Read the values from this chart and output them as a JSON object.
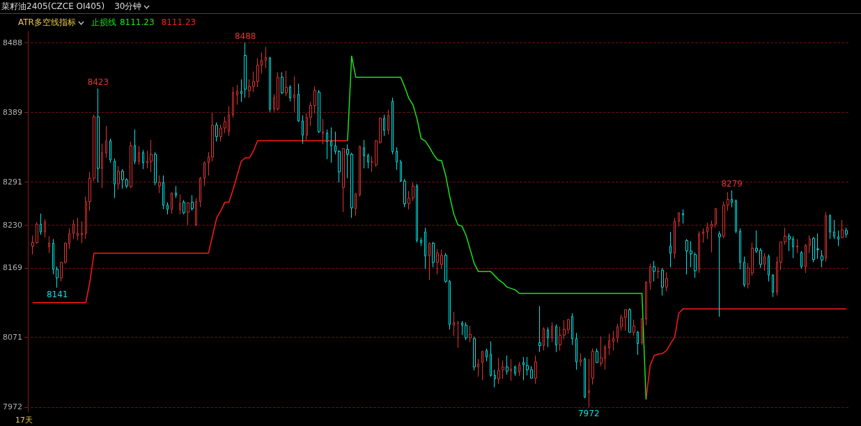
{
  "chart_data": {
    "type": "candlestick",
    "title": "菜籽油2405(CZCE OI405)",
    "subtitle": "30分钟",
    "categories": [
      null,
      null,
      null,
      null,
      null,
      null,
      null,
      null,
      null,
      null,
      null,
      null,
      null,
      null,
      null,
      null,
      null,
      null,
      null,
      null,
      null,
      null,
      null,
      null,
      null,
      null,
      null,
      null,
      null,
      null,
      null,
      null,
      null,
      null,
      null,
      null,
      null,
      null,
      null,
      null,
      null,
      null,
      null,
      null,
      null,
      null,
      null,
      null,
      null,
      null,
      null,
      null,
      null,
      null,
      null,
      null,
      null,
      null,
      null,
      null,
      null,
      null,
      null,
      null,
      null,
      null,
      null,
      null,
      null,
      null,
      null,
      null,
      null,
      null,
      null,
      null,
      null,
      null,
      null,
      null,
      null,
      null,
      null,
      null,
      null,
      null,
      null,
      null,
      null,
      null,
      null,
      null,
      null,
      null,
      null,
      null,
      null,
      null,
      null,
      null,
      null,
      null,
      null,
      null,
      null,
      null,
      null,
      null,
      null,
      null,
      null,
      null,
      null,
      null,
      null,
      null,
      null,
      null,
      null,
      null,
      null,
      null,
      null,
      null,
      null,
      null,
      null,
      null,
      null,
      null,
      null,
      null,
      null,
      null,
      null,
      null,
      null,
      null,
      null,
      null,
      null,
      null,
      null,
      null,
      null,
      null,
      null,
      null,
      null,
      null,
      null,
      null,
      null,
      null,
      null,
      null,
      null,
      null,
      null,
      null,
      null,
      null,
      null,
      null,
      null,
      null,
      null,
      null,
      null,
      null,
      null,
      null,
      null,
      null,
      null,
      null,
      null,
      null,
      null,
      null,
      null,
      null,
      null,
      null,
      null,
      null,
      null,
      null,
      null,
      null,
      null,
      null,
      null,
      null,
      null,
      null,
      null,
      null,
      null,
      null
    ],
    "ohlc": [
      [
        8200,
        8215,
        8188,
        8205
      ],
      [
        8205,
        8234,
        8203,
        8231
      ],
      [
        8231,
        8246,
        8216,
        8220
      ],
      [
        8220,
        8238,
        8212,
        8234
      ],
      [
        8199,
        8214,
        8190,
        8204
      ],
      [
        8204,
        8210,
        8160,
        8167
      ],
      [
        8167,
        8171,
        8141,
        8155
      ],
      [
        8155,
        8177,
        8150,
        8177
      ],
      [
        8177,
        8205,
        8175,
        8204
      ],
      [
        8204,
        8225,
        8196,
        8218
      ],
      [
        8218,
        8237,
        8210,
        8231
      ],
      [
        8215,
        8240,
        8208,
        8218
      ],
      [
        8216,
        8235,
        8204,
        8218
      ],
      [
        8218,
        8270,
        8210,
        8263
      ],
      [
        8263,
        8305,
        8250,
        8296
      ],
      [
        8296,
        8386,
        8292,
        8383
      ],
      [
        8383,
        8423,
        8290,
        8310
      ],
      [
        8310,
        8345,
        8282,
        8332
      ],
      [
        8332,
        8370,
        8325,
        8349
      ],
      [
        8349,
        8352,
        8318,
        8322
      ],
      [
        8320,
        8324,
        8268,
        8288
      ],
      [
        8288,
        8313,
        8280,
        8306
      ],
      [
        8306,
        8309,
        8281,
        8294
      ],
      [
        8294,
        8296,
        8282,
        8285
      ],
      [
        8284,
        8348,
        8282,
        8342
      ],
      [
        8342,
        8365,
        8316,
        8320
      ],
      [
        8320,
        8342,
        8315,
        8332
      ],
      [
        8332,
        8336,
        8309,
        8318
      ],
      [
        8318,
        8335,
        8310,
        8320
      ],
      [
        8320,
        8350,
        8305,
        8330
      ],
      [
        8330,
        8333,
        8286,
        8290
      ],
      [
        8285,
        8300,
        8275,
        8290
      ],
      [
        8290,
        8300,
        8252,
        8258
      ],
      [
        8258,
        8262,
        8245,
        8252
      ],
      [
        8252,
        8276,
        8246,
        8275
      ],
      [
        8275,
        8285,
        8268,
        8272
      ],
      [
        8252,
        8273,
        8245,
        8260
      ],
      [
        8262,
        8265,
        8245,
        8247
      ],
      [
        8248,
        8262,
        8230,
        8261
      ],
      [
        8262,
        8272,
        8250,
        8253
      ],
      [
        8230,
        8268,
        8228,
        8263
      ],
      [
        8263,
        8298,
        8255,
        8296
      ],
      [
        8296,
        8320,
        8285,
        8318
      ],
      [
        8318,
        8333,
        8300,
        8326
      ],
      [
        8326,
        8388,
        8320,
        8371
      ],
      [
        8371,
        8375,
        8348,
        8355
      ],
      [
        8355,
        8372,
        8348,
        8367
      ],
      [
        8367,
        8383,
        8360,
        8376
      ],
      [
        8362,
        8398,
        8356,
        8386
      ],
      [
        8386,
        8425,
        8382,
        8417
      ],
      [
        8414,
        8428,
        8400,
        8419
      ],
      [
        8419,
        8436,
        8404,
        8416
      ],
      [
        8470,
        8488,
        8410,
        8422
      ],
      [
        8420,
        8436,
        8410,
        8426
      ],
      [
        8426,
        8447,
        8418,
        8433
      ],
      [
        8433,
        8466,
        8425,
        8456
      ],
      [
        8456,
        8474,
        8444,
        8463
      ],
      [
        8463,
        8482,
        8452,
        8467
      ],
      [
        8466,
        8468,
        8390,
        8394
      ],
      [
        8394,
        8415,
        8390,
        8410
      ],
      [
        8394,
        8446,
        8392,
        8439
      ],
      [
        8439,
        8446,
        8415,
        8417
      ],
      [
        8417,
        8448,
        8412,
        8425
      ],
      [
        8425,
        8428,
        8405,
        8410
      ],
      [
        8410,
        8440,
        8390,
        8414
      ],
      [
        8415,
        8430,
        8376,
        8377
      ],
      [
        8377,
        8385,
        8345,
        8357
      ],
      [
        8357,
        8388,
        8350,
        8382
      ],
      [
        8382,
        8404,
        8370,
        8399
      ],
      [
        8399,
        8426,
        8388,
        8420
      ],
      [
        8418,
        8421,
        8360,
        8362
      ],
      [
        8360,
        8380,
        8344,
        8362
      ],
      [
        8360,
        8365,
        8323,
        8348
      ],
      [
        8348,
        8368,
        8318,
        8342
      ],
      [
        8342,
        8362,
        8330,
        8334
      ],
      [
        8334,
        8336,
        8290,
        8305
      ],
      [
        8283,
        8338,
        8248,
        8338
      ],
      [
        8337,
        8344,
        8296,
        8330
      ],
      [
        8330,
        8332,
        8240,
        8254
      ],
      [
        8253,
        8275,
        8243,
        8274
      ],
      [
        8273,
        8342,
        8270,
        8341
      ],
      [
        8339,
        8350,
        8310,
        8328
      ],
      [
        8328,
        8331,
        8310,
        8319
      ],
      [
        8319,
        8327,
        8305,
        8319
      ],
      [
        8315,
        8350,
        8312,
        8349
      ],
      [
        8347,
        8382,
        8345,
        8381
      ],
      [
        8381,
        8386,
        8356,
        8364
      ],
      [
        8364,
        8393,
        8358,
        8385
      ],
      [
        8405,
        8410,
        8330,
        8334
      ],
      [
        8334,
        8340,
        8308,
        8319
      ],
      [
        8319,
        8322,
        8291,
        8292
      ],
      [
        8292,
        8295,
        8255,
        8260
      ],
      [
        8260,
        8278,
        8252,
        8268
      ],
      [
        8268,
        8290,
        8264,
        8285
      ],
      [
        8285,
        8288,
        8205,
        8208
      ],
      [
        8208,
        8212,
        8200,
        8205
      ],
      [
        8220,
        8226,
        8168,
        8186
      ],
      [
        8186,
        8205,
        8152,
        8204
      ],
      [
        8204,
        8206,
        8170,
        8177
      ],
      [
        8177,
        8196,
        8160,
        8190
      ],
      [
        8174,
        8195,
        8168,
        8187
      ],
      [
        8187,
        8190,
        8148,
        8150
      ],
      [
        8150,
        8152,
        8082,
        8089
      ],
      [
        8088,
        8107,
        8073,
        8092
      ],
      [
        8091,
        8094,
        8056,
        8091
      ],
      [
        8091,
        8094,
        8074,
        8088
      ],
      [
        8088,
        8092,
        8067,
        8070
      ],
      [
        8070,
        8087,
        8064,
        8075
      ],
      [
        8069,
        8072,
        8024,
        8029
      ],
      [
        8029,
        8040,
        8015,
        8033
      ],
      [
        8035,
        8052,
        8010,
        8051
      ],
      [
        8052,
        8055,
        8037,
        8043
      ],
      [
        8047,
        8065,
        8015,
        8017
      ],
      [
        8017,
        8025,
        8000,
        8012
      ],
      [
        8012,
        8042,
        8005,
        8024
      ],
      [
        8025,
        8038,
        8012,
        8029
      ],
      [
        8029,
        8045,
        8018,
        8023
      ],
      [
        8023,
        8040,
        8009,
        8026
      ],
      [
        8029,
        8031,
        8016,
        8020
      ],
      [
        8022,
        8036,
        8016,
        8032
      ],
      [
        8035,
        8043,
        8010,
        8032
      ],
      [
        8031,
        8043,
        8017,
        8025
      ],
      [
        8025,
        8030,
        8013,
        8013
      ],
      [
        8013,
        8045,
        8005,
        8036
      ],
      [
        8063,
        8115,
        8050,
        8059
      ],
      [
        8059,
        8085,
        8052,
        8083
      ],
      [
        8081,
        8085,
        8057,
        8070
      ],
      [
        8070,
        8092,
        8064,
        8086
      ],
      [
        8086,
        8089,
        8050,
        8060
      ],
      [
        8060,
        8086,
        8052,
        8074
      ],
      [
        8074,
        8095,
        8068,
        8082
      ],
      [
        8082,
        8097,
        8076,
        8096
      ],
      [
        8100,
        8105,
        8060,
        8069
      ],
      [
        8069,
        8077,
        8025,
        8036
      ],
      [
        8036,
        8048,
        8030,
        8039
      ],
      [
        8040,
        8042,
        7985,
        7986
      ],
      [
        7993,
        8040,
        7972,
        7995
      ],
      [
        8013,
        8055,
        8004,
        8051
      ],
      [
        8051,
        8055,
        8035,
        8035
      ],
      [
        8034,
        8072,
        8030,
        8042
      ],
      [
        8041,
        8060,
        8025,
        8057
      ],
      [
        8056,
        8076,
        8046,
        8066
      ],
      [
        8065,
        8080,
        8052,
        8069
      ],
      [
        8070,
        8090,
        8063,
        8086
      ],
      [
        8086,
        8103,
        8080,
        8099
      ],
      [
        8099,
        8110,
        8080,
        8110
      ],
      [
        8110,
        8112,
        8078,
        8078
      ],
      [
        8078,
        8096,
        8073,
        8087
      ],
      [
        8078,
        8080,
        8046,
        8062
      ],
      [
        8063,
        8098,
        8060,
        8097
      ],
      [
        8097,
        8150,
        8088,
        8149
      ],
      [
        8148,
        8175,
        8138,
        8171
      ],
      [
        8171,
        8179,
        8150,
        8164
      ],
      [
        8164,
        8170,
        8154,
        8164
      ],
      [
        8166,
        8169,
        8130,
        8142
      ],
      [
        8142,
        8163,
        8136,
        8154
      ],
      [
        8200,
        8220,
        8170,
        8190
      ],
      [
        8190,
        8240,
        8182,
        8235
      ],
      [
        8235,
        8248,
        8228,
        8247
      ],
      [
        8246,
        8252,
        8232,
        8244
      ],
      [
        8208,
        8210,
        8160,
        8193
      ],
      [
        8193,
        8207,
        8170,
        8189
      ],
      [
        8188,
        8191,
        8155,
        8165
      ],
      [
        8167,
        8221,
        8162,
        8217
      ],
      [
        8218,
        8225,
        8205,
        8220
      ],
      [
        8220,
        8233,
        8210,
        8227
      ],
      [
        8227,
        8236,
        8191,
        8231
      ],
      [
        8231,
        8254,
        8226,
        8253
      ],
      [
        8217,
        8221,
        8100,
        8213
      ],
      [
        8214,
        8263,
        8211,
        8258
      ],
      [
        8258,
        8276,
        8250,
        8266
      ],
      [
        8266,
        8279,
        8255,
        8262
      ],
      [
        8264,
        8266,
        8218,
        8221
      ],
      [
        8221,
        8225,
        8167,
        8177
      ],
      [
        8177,
        8185,
        8142,
        8145
      ],
      [
        8146,
        8176,
        8140,
        8169
      ],
      [
        8162,
        8205,
        8158,
        8197
      ],
      [
        8197,
        8222,
        8190,
        8193
      ],
      [
        8194,
        8197,
        8169,
        8174
      ],
      [
        8174,
        8190,
        8165,
        8185
      ],
      [
        8185,
        8188,
        8150,
        8159
      ],
      [
        8159,
        8160,
        8128,
        8135
      ],
      [
        8135,
        8185,
        8130,
        8177
      ],
      [
        8177,
        8206,
        8166,
        8206
      ],
      [
        8206,
        8226,
        8202,
        8214
      ],
      [
        8214,
        8218,
        8193,
        8210
      ],
      [
        8210,
        8214,
        8183,
        8199
      ],
      [
        8199,
        8210,
        8190,
        8200
      ],
      [
        8191,
        8193,
        8168,
        8171
      ],
      [
        8171,
        8203,
        8162,
        8201
      ],
      [
        8201,
        8215,
        8190,
        8210
      ],
      [
        8211,
        8213,
        8177,
        8181
      ],
      [
        8196,
        8218,
        8182,
        8195
      ],
      [
        8186,
        8194,
        8170,
        8180
      ],
      [
        8183,
        8248,
        8178,
        8243
      ],
      [
        8243,
        8245,
        8210,
        8220
      ],
      [
        8220,
        8237,
        8210,
        8214
      ],
      [
        8213,
        8222,
        8200,
        8210
      ],
      [
        8212,
        8237,
        8211,
        8223
      ],
      [
        8222,
        8226,
        8212,
        8217
      ]
    ],
    "colors": [
      "#e03434",
      "#e03434",
      "#00e5e5",
      "#e03434",
      "#e03434",
      "#00e5e5",
      "#00e5e5",
      "#e03434",
      "#e03434",
      "#e03434",
      "#e03434",
      "#e03434",
      "#e03434",
      "#e03434",
      "#e03434",
      "#e03434",
      "#00e5e5",
      "#e03434",
      "#e03434",
      "#00e5e5",
      "#00e5e5",
      "#e03434",
      "#00e5e5",
      "#00e5e5",
      "#e03434",
      "#00e5e5",
      "#e03434",
      "#00e5e5",
      "#e03434",
      "#e03434",
      "#00e5e5",
      "#e03434",
      "#00e5e5",
      "#00e5e5",
      "#e03434",
      "#00e5e5",
      "#e03434",
      "#00e5e5",
      "#e03434",
      "#00e5e5",
      "#e03434",
      "#e03434",
      "#e03434",
      "#e03434",
      "#e03434",
      "#00e5e5",
      "#e03434",
      "#e03434",
      "#e03434",
      "#e03434",
      "#e03434",
      "#00e5e5",
      "#00e5e5",
      "#e03434",
      "#e03434",
      "#e03434",
      "#e03434",
      "#e03434",
      "#00e5e5",
      "#e03434",
      "#e03434",
      "#00e5e5",
      "#e03434",
      "#00e5e5",
      "#e03434",
      "#00e5e5",
      "#00e5e5",
      "#e03434",
      "#e03434",
      "#e03434",
      "#00e5e5",
      "#e03434",
      "#00e5e5",
      "#00e5e5",
      "#00e5e5",
      "#00e5e5",
      "#e03434",
      "#00e5e5",
      "#00e5e5",
      "#e03434",
      "#e03434",
      "#00e5e5",
      "#00e5e5",
      "#e03434",
      "#e03434",
      "#e03434",
      "#00e5e5",
      "#e03434",
      "#00e5e5",
      "#00e5e5",
      "#00e5e5",
      "#00e5e5",
      "#e03434",
      "#e03434",
      "#00e5e5",
      "#00e5e5",
      "#00e5e5",
      "#e03434",
      "#00e5e5",
      "#e03434",
      "#e03434",
      "#00e5e5",
      "#00e5e5",
      "#e03434",
      "#e03434",
      "#00e5e5",
      "#00e5e5",
      "#e03434",
      "#00e5e5",
      "#e03434",
      "#e03434",
      "#00e5e5",
      "#00e5e5",
      "#00e5e5",
      "#e03434",
      "#e03434",
      "#00e5e5",
      "#e03434",
      "#00e5e5",
      "#e03434",
      "#00e5e5",
      "#00e5e5",
      "#00e5e5",
      "#e03434",
      "#00e5e5",
      "#e03434",
      "#00e5e5",
      "#e03434",
      "#00e5e5",
      "#e03434",
      "#e03434",
      "#e03434",
      "#00e5e5",
      "#00e5e5",
      "#e03434",
      "#00e5e5",
      "#e03434",
      "#e03434",
      "#00e5e5",
      "#e03434",
      "#e03434",
      "#e03434",
      "#e03434",
      "#e03434",
      "#e03434",
      "#e03434",
      "#00e5e5",
      "#e03434",
      "#00e5e5",
      "#e03434",
      "#e03434",
      "#e03434",
      "#00e5e5",
      "#e03434",
      "#00e5e5",
      "#e03434",
      "#00e5e5",
      "#e03434",
      "#e03434",
      "#00e5e5",
      "#00e5e5",
      "#00e5e5",
      "#00e5e5",
      "#e03434",
      "#e03434",
      "#e03434",
      "#e03434",
      "#e03434",
      "#00e5e5",
      "#e03434",
      "#e03434",
      "#00e5e5",
      "#00e5e5",
      "#00e5e5",
      "#00e5e5",
      "#e03434",
      "#e03434",
      "#00e5e5",
      "#00e5e5",
      "#e03434",
      "#00e5e5",
      "#00e5e5",
      "#e03434",
      "#e03434",
      "#e03434",
      "#00e5e5",
      "#00e5e5",
      "#e03434",
      "#00e5e5",
      "#e03434",
      "#e03434",
      "#00e5e5",
      "#00e5e5",
      "#00e5e5",
      "#e03434",
      "#00e5e5",
      "#00e5e5",
      "#00e5e5",
      "#e03434",
      "#00e5e5"
    ],
    "series": [
      {
        "type": "line",
        "color": "#ff1a1a",
        "values": [
          8120,
          8120,
          8120,
          8120,
          8120,
          8120,
          8120,
          8120,
          8120,
          8120,
          8120,
          8120,
          8120,
          8120,
          8150,
          8190,
          8190,
          8190,
          8190,
          8190,
          8190,
          8190,
          8190,
          8190,
          8190,
          8190,
          8190,
          8190,
          8190,
          8190,
          8190,
          8190,
          8190,
          8190,
          8190,
          8190,
          8190,
          8190,
          8190,
          8190,
          8190,
          8190,
          8190,
          8190,
          8215,
          8240,
          8250,
          8262,
          8262,
          8280,
          8300,
          8320,
          8325,
          8325,
          8335,
          8349,
          8349,
          8349,
          8349,
          8349,
          8349,
          8349,
          8349,
          8349,
          8349,
          8349,
          8349,
          8349,
          8349,
          8349,
          8349,
          8349,
          8349,
          8349,
          8349,
          8349,
          8349,
          8349,
          null,
          null,
          null,
          null,
          null,
          null,
          null,
          null,
          null,
          null,
          null,
          null,
          null,
          null,
          null,
          null,
          null,
          null,
          null,
          null,
          null,
          null,
          null,
          null,
          null,
          null,
          null,
          null,
          null,
          null,
          null,
          null,
          null,
          null,
          null,
          null,
          null,
          null,
          null,
          null,
          null,
          null,
          null,
          null,
          null,
          null,
          null,
          null,
          null,
          null,
          null,
          null,
          null,
          null,
          null,
          null,
          null,
          null,
          null,
          null,
          null,
          null,
          null,
          null,
          null,
          null,
          null,
          null,
          null,
          null,
          null,
          null,
          7983,
          8031,
          8045,
          8047,
          8048,
          8052,
          8062,
          8071,
          8105,
          8111,
          8111,
          8111,
          8111,
          8111,
          8111,
          8111,
          8111,
          8111,
          8111,
          8111,
          8111,
          8111,
          8111,
          8111,
          8111,
          8111,
          8111,
          8111,
          8111,
          8111,
          8111,
          8111,
          8111,
          8111,
          8111,
          8111,
          8111,
          8111,
          8111,
          8111,
          8111,
          8111,
          8111,
          8111,
          8111,
          8111,
          8111,
          8111,
          8111,
          8111
        ]
      },
      {
        "type": "line",
        "name": "止损线",
        "color": "#19e619",
        "values": [
          null,
          null,
          null,
          null,
          null,
          null,
          null,
          null,
          null,
          null,
          null,
          null,
          null,
          null,
          null,
          null,
          null,
          null,
          null,
          null,
          null,
          null,
          null,
          null,
          null,
          null,
          null,
          null,
          null,
          null,
          null,
          null,
          null,
          null,
          null,
          null,
          null,
          null,
          null,
          null,
          null,
          null,
          null,
          null,
          null,
          null,
          null,
          null,
          null,
          null,
          null,
          null,
          null,
          null,
          null,
          null,
          null,
          null,
          null,
          null,
          null,
          null,
          null,
          null,
          null,
          null,
          null,
          null,
          null,
          null,
          null,
          null,
          null,
          null,
          null,
          null,
          null,
          8349,
          8469,
          8439,
          8439,
          8439,
          8439,
          8439,
          8439,
          8439,
          8439,
          8439,
          8439,
          8439,
          8439,
          8425,
          8409,
          8400,
          8380,
          8352,
          8349,
          8340,
          8330,
          8322,
          8321,
          8300,
          8270,
          8245,
          8230,
          8228,
          8215,
          8195,
          8175,
          8164,
          8164,
          8164,
          8164,
          8158,
          8152,
          8148,
          8142,
          8140,
          8138,
          8133,
          8133,
          8133,
          8133,
          8133,
          8133,
          8133,
          8133,
          8133,
          8133,
          8133,
          8133,
          8133,
          8133,
          8133,
          8133,
          8133,
          8133,
          8133,
          8133,
          8133,
          8133,
          8133,
          8133,
          8133,
          8133,
          8133,
          8133,
          8133,
          8133,
          8133,
          7983,
          null,
          null,
          null,
          null,
          null,
          null,
          null,
          null,
          null,
          null,
          null,
          null,
          null,
          null,
          null,
          null,
          null,
          null,
          null,
          null,
          null,
          null,
          null,
          null,
          null,
          null,
          null,
          null,
          null,
          null,
          null,
          null,
          null,
          null,
          null,
          null,
          null,
          null,
          null,
          null,
          null,
          null,
          null,
          null,
          null,
          null,
          null,
          null,
          null
        ]
      }
    ],
    "annotations": [
      "ATR多空线指标",
      "8111.23",
      "8111.23",
      "17天",
      {
        "text": "8423",
        "y": 8423
      },
      {
        "text": "8488",
        "y": 8488
      },
      {
        "text": "8141",
        "y": 8141
      },
      {
        "text": "7972",
        "y": 7972
      },
      {
        "text": "8279",
        "y": 8279
      }
    ],
    "ylim": [
      7965,
      8504
    ],
    "yticks": [
      8488,
      8389,
      8291,
      8230,
      8169,
      8071,
      7972
    ],
    "grid": "y",
    "tick_labels": "y"
  }
}
